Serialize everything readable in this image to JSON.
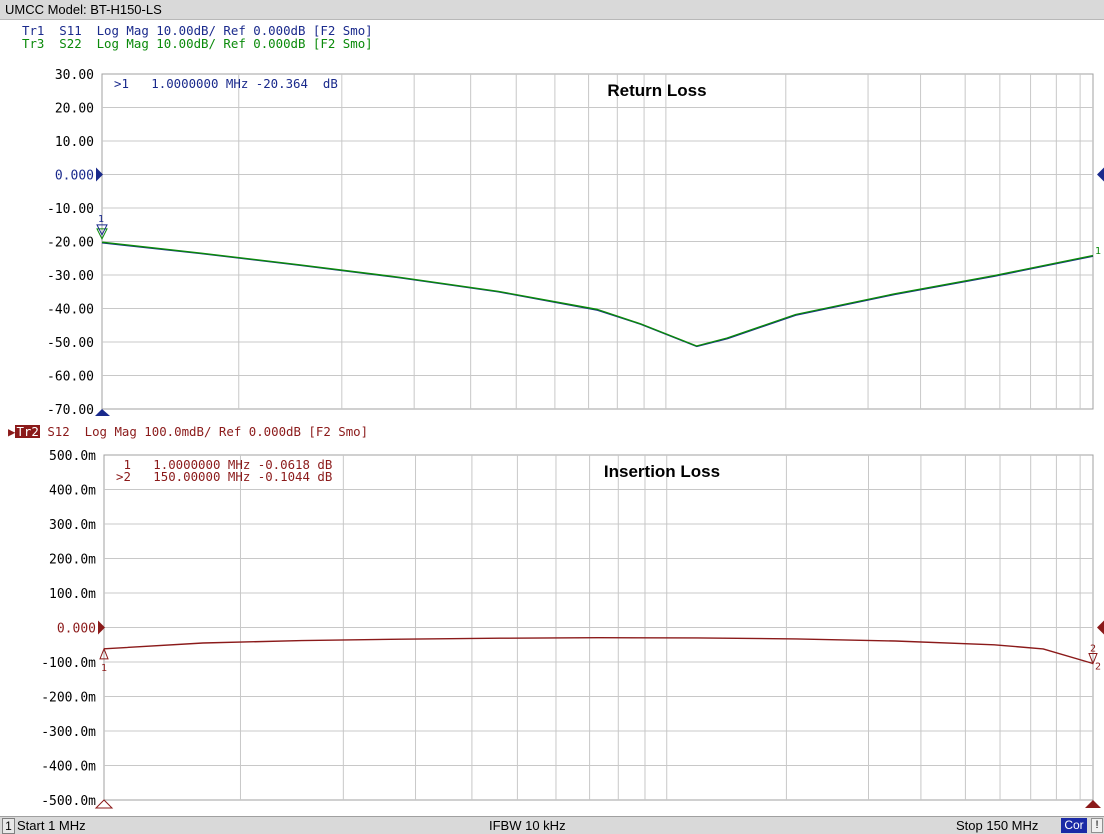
{
  "window": {
    "title": "UMCC  Model: BT-H150-LS"
  },
  "colors": {
    "trace1": "#1a2a8c",
    "trace3": "#0a8a0a",
    "trace2": "#8b1a1a",
    "grid": "#c8c8c8"
  },
  "header": {
    "tr1": "Tr1  S11  Log Mag 10.00dB/ Ref 0.000dB [F2 Smo]",
    "tr3": "Tr3  S22  Log Mag 10.00dB/ Ref 0.000dB [F2 Smo]",
    "tr2_badge": "Tr2",
    "tr2": " S12  Log Mag 100.0mdB/ Ref 0.000dB [F2 Smo]"
  },
  "markers": {
    "top": [
      ">1   1.0000000 MHz -20.364  dB"
    ],
    "bottom": [
      " 1   1.0000000 MHz -0.0618 dB",
      ">2   150.00000 MHz -0.1044 dB"
    ]
  },
  "chart_data": [
    {
      "type": "line",
      "title": "Return Loss",
      "x_range_mhz": [
        1,
        150
      ],
      "ylim": [
        -70,
        30
      ],
      "ytick_labels": [
        "30.00",
        "20.00",
        "10.00",
        "0.000",
        "-10.00",
        "-20.00",
        "-30.00",
        "-40.00",
        "-50.00",
        "-60.00",
        "-70.00"
      ],
      "ref_label": "0.000",
      "ref_value": 0,
      "series": [
        {
          "key": "S11",
          "x": [
            1,
            15.9,
            30.8,
            45.7,
            60.6,
            75.5,
            82.0,
            90.4,
            95.0,
            105.3,
            120.2,
            135.1,
            150
          ],
          "y": [
            -20.4,
            -23.6,
            -27.1,
            -30.8,
            -35.0,
            -40.5,
            -44.7,
            -51.3,
            -49.0,
            -42.0,
            -35.8,
            -30.4,
            -24.4
          ]
        },
        {
          "key": "S22",
          "x": [
            1,
            15.9,
            30.8,
            45.7,
            60.6,
            75.5,
            82.0,
            90.4,
            95.0,
            105.3,
            120.2,
            135.1,
            150
          ],
          "y": [
            -20.2,
            -23.5,
            -27.0,
            -30.7,
            -34.9,
            -40.3,
            -44.6,
            -51.2,
            -48.8,
            -41.8,
            -35.6,
            -30.2,
            -24.2
          ]
        }
      ],
      "grid": true
    },
    {
      "type": "line",
      "title": "Insertion Loss",
      "x_range_mhz": [
        1,
        150
      ],
      "ylim": [
        -500,
        500
      ],
      "unit": "mdB",
      "ytick_labels": [
        "500.0m",
        "400.0m",
        "300.0m",
        "200.0m",
        "100.0m",
        "0.000",
        "-100.0m",
        "-200.0m",
        "-300.0m",
        "-400.0m",
        "-500.0m"
      ],
      "ref_label": "0.000",
      "ref_value": 0,
      "series": [
        {
          "key": "S12",
          "x": [
            1,
            15.9,
            30.8,
            45.7,
            60.6,
            75.5,
            90.4,
            105.3,
            120.2,
            135.1,
            142.5,
            150
          ],
          "y": [
            -61.8,
            -45.0,
            -38.0,
            -34.0,
            -31.0,
            -29.5,
            -30.0,
            -33.0,
            -39.0,
            -50.0,
            -62.0,
            -104.4
          ]
        }
      ],
      "grid": true
    }
  ],
  "status": {
    "channel": "1",
    "start": "Start 1 MHz",
    "ifbw": "IFBW 10 kHz",
    "stop": "Stop 150 MHz",
    "cor": "Cor",
    "excl": "!"
  }
}
